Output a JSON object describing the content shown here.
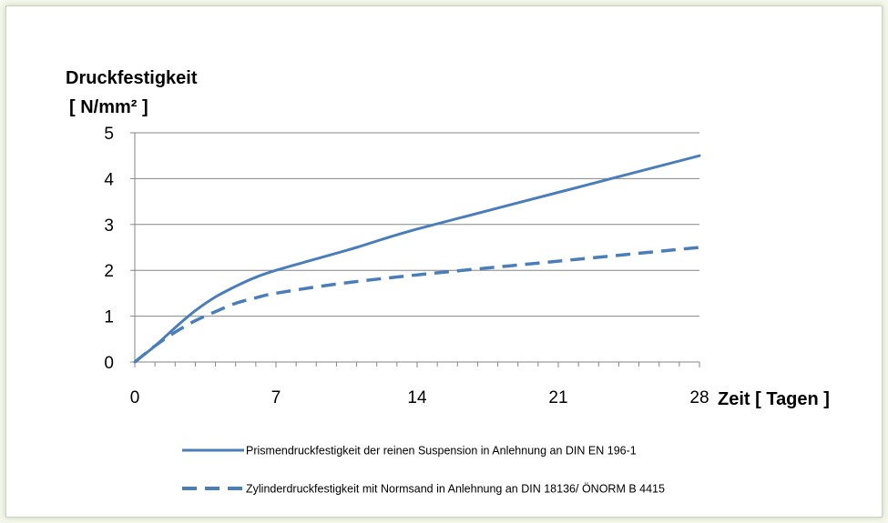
{
  "chart_data": {
    "type": "line",
    "ylabel_line1": "Druckfestigkeit",
    "ylabel_line2": "[ N/mm² ]",
    "xlabel": "Zeit [ Tagen ]",
    "xlim": [
      0,
      28
    ],
    "ylim": [
      0,
      5
    ],
    "x_ticks": [
      0,
      7,
      14,
      21,
      28
    ],
    "y_ticks": [
      0,
      1,
      2,
      3,
      4,
      5
    ],
    "x_minor_step": 1,
    "grid": "horizontal",
    "legend_position": "bottom",
    "series": [
      {
        "name": "Prismendruckfestigkeit der reinen Suspension in Anlehnung an DIN EN 196-1",
        "style": "solid",
        "color": "#4a7ebb",
        "points": [
          [
            0,
            0
          ],
          [
            1,
            0.35
          ],
          [
            2,
            0.75
          ],
          [
            3,
            1.12
          ],
          [
            4,
            1.42
          ],
          [
            5,
            1.65
          ],
          [
            6,
            1.85
          ],
          [
            7,
            2.0
          ],
          [
            9,
            2.25
          ],
          [
            11,
            2.5
          ],
          [
            14,
            2.9
          ],
          [
            21,
            3.7
          ],
          [
            28,
            4.5
          ]
        ]
      },
      {
        "name": "Zylinderdruckfestigkeit mit Normsand in Anlehnung an DIN 18136/ ÖNORM B 4415",
        "style": "dashed",
        "color": "#4a7ebb",
        "points": [
          [
            0,
            0
          ],
          [
            1,
            0.35
          ],
          [
            2,
            0.65
          ],
          [
            3,
            0.9
          ],
          [
            4,
            1.1
          ],
          [
            5,
            1.28
          ],
          [
            6,
            1.4
          ],
          [
            7,
            1.5
          ],
          [
            10,
            1.7
          ],
          [
            14,
            1.9
          ],
          [
            21,
            2.2
          ],
          [
            28,
            2.5
          ]
        ]
      }
    ]
  }
}
